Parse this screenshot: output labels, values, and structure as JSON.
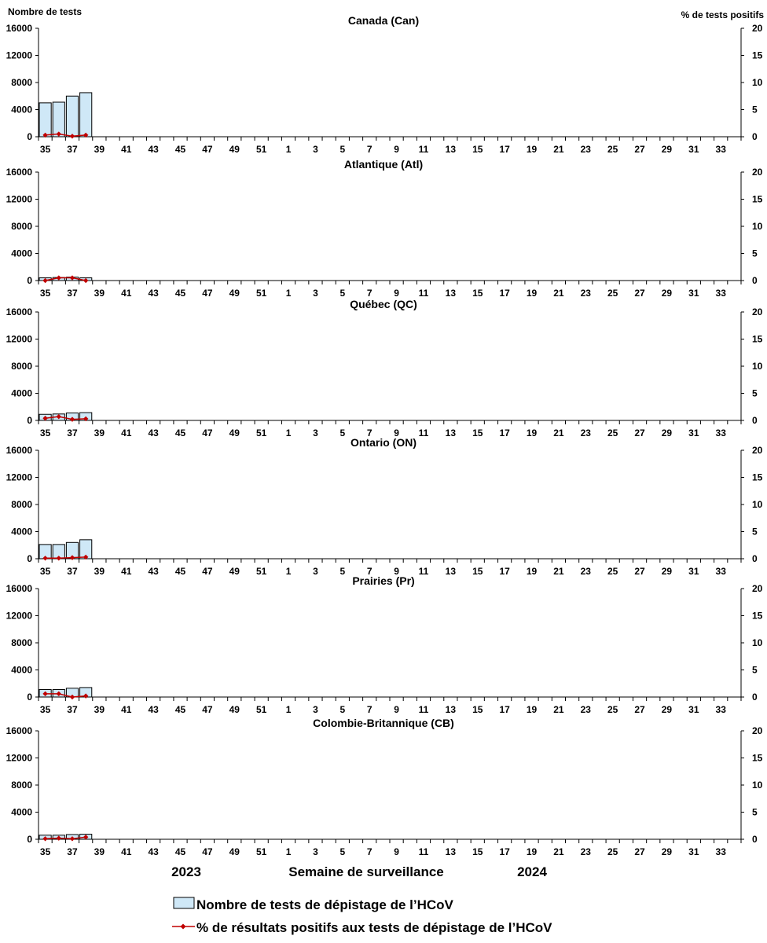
{
  "chart_data": {
    "type": "bar",
    "left_axis_label": "Nombre de tests",
    "right_axis_label": "% de tests positifs",
    "xlabel": "Semaine de surveillance",
    "year_labels": [
      "2023",
      "2024"
    ],
    "weeks": [
      35,
      36,
      37,
      38,
      39,
      40,
      41,
      42,
      43,
      44,
      45,
      46,
      47,
      48,
      49,
      50,
      51,
      52,
      1,
      2,
      3,
      4,
      5,
      6,
      7,
      8,
      9,
      10,
      11,
      12,
      13,
      14,
      15,
      16,
      17,
      18,
      19,
      20,
      21,
      22,
      23,
      24,
      25,
      26,
      27,
      28,
      29,
      30,
      31,
      32,
      33,
      34
    ],
    "x_tick_labels": [
      "35",
      "37",
      "39",
      "41",
      "43",
      "45",
      "47",
      "49",
      "51",
      "1",
      "3",
      "5",
      "7",
      "9",
      "11",
      "13",
      "15",
      "17",
      "19",
      "21",
      "23",
      "25",
      "27",
      "29",
      "31",
      "33"
    ],
    "ylim_left": [
      0,
      16000
    ],
    "yticks_left": [
      "0",
      "4000",
      "8000",
      "12000",
      "16000"
    ],
    "ylim_right": [
      0,
      20
    ],
    "yticks_right": [
      "0",
      "5",
      "10",
      "15",
      "20"
    ],
    "legend": {
      "bar": "Nombre de tests de dépistage de l’HCoV",
      "line": "% de résultats positifs aux tests de dépistage de l’HCoV"
    },
    "colors": {
      "bar_fill": "#cfe8f7",
      "bar_stroke": "#000000",
      "line": "#c00000",
      "marker": "#c00000"
    },
    "panels": [
      {
        "title": "Canada (Can)",
        "tests": [
          5000,
          5100,
          6000,
          6500
        ],
        "positive_pct": [
          0.3,
          0.5,
          0.1,
          0.3
        ]
      },
      {
        "title": "Atlantique (Atl)",
        "tests": [
          400,
          450,
          500,
          400
        ],
        "positive_pct": [
          0.0,
          0.5,
          0.5,
          0.0
        ]
      },
      {
        "title": "Québec (QC)",
        "tests": [
          900,
          950,
          1100,
          1150
        ],
        "positive_pct": [
          0.4,
          0.7,
          0.2,
          0.3
        ]
      },
      {
        "title": "Ontario (ON)",
        "tests": [
          2100,
          2100,
          2400,
          2800
        ],
        "positive_pct": [
          0.1,
          0.1,
          0.2,
          0.3
        ]
      },
      {
        "title": "Prairies (Pr)",
        "tests": [
          1100,
          1100,
          1300,
          1400
        ],
        "positive_pct": [
          0.6,
          0.6,
          0.0,
          0.2
        ]
      },
      {
        "title": "Colombie-Britannique (CB)",
        "tests": [
          600,
          600,
          700,
          750
        ],
        "positive_pct": [
          0.1,
          0.2,
          0.1,
          0.4
        ]
      }
    ]
  }
}
